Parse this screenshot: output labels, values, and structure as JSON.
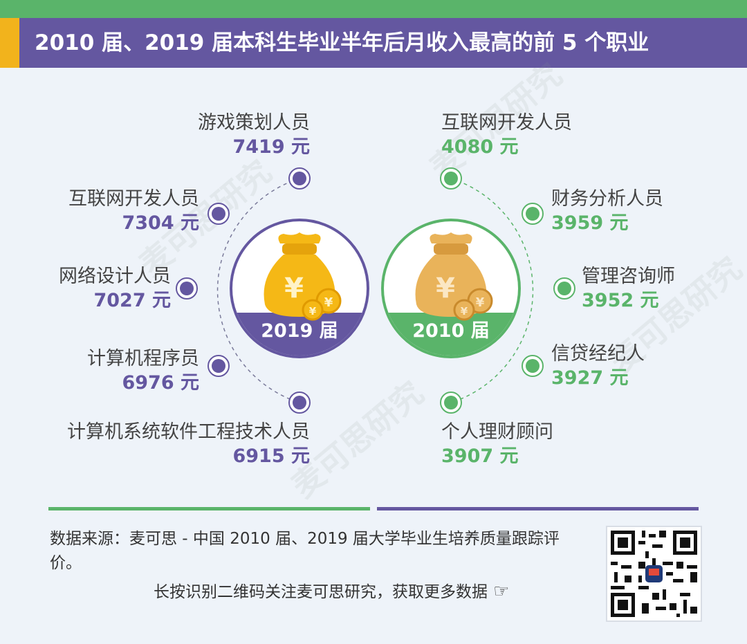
{
  "header": {
    "title": "2010 届、2019 届本科生毕业半年后月收入最高的前 5 个职业"
  },
  "left_group": {
    "badge": "2019 届",
    "items": [
      {
        "name": "游戏策划人员",
        "value": "7419 元"
      },
      {
        "name": "互联网开发人员",
        "value": "7304 元"
      },
      {
        "name": "网络设计人员",
        "value": "7027 元"
      },
      {
        "name": "计算机程序员",
        "value": "6976 元"
      },
      {
        "name": "计算机系统软件工程技术人员",
        "value": "6915 元"
      }
    ]
  },
  "right_group": {
    "badge": "2010 届",
    "items": [
      {
        "name": "互联网开发人员",
        "value": "4080 元"
      },
      {
        "name": "财务分析人员",
        "value": "3959 元"
      },
      {
        "name": "管理咨询师",
        "value": "3952 元"
      },
      {
        "name": "信贷经纪人",
        "value": "3927 元"
      },
      {
        "name": "个人理财顾问",
        "value": "3907 元"
      }
    ]
  },
  "footer": {
    "source": "数据来源：麦可思 - 中国 2010 届、2019 届大学毕业生培养质量跟踪评价。",
    "cta": "长按识别二维码关注麦可思研究，获取更多数据",
    "hand_icon": "pointing-hand-icon"
  },
  "watermark": "麦可思研究",
  "colors": {
    "purple": "#6457a0",
    "green": "#5ab46a",
    "yellow": "#f2b31c",
    "background": "#eef3f9"
  }
}
